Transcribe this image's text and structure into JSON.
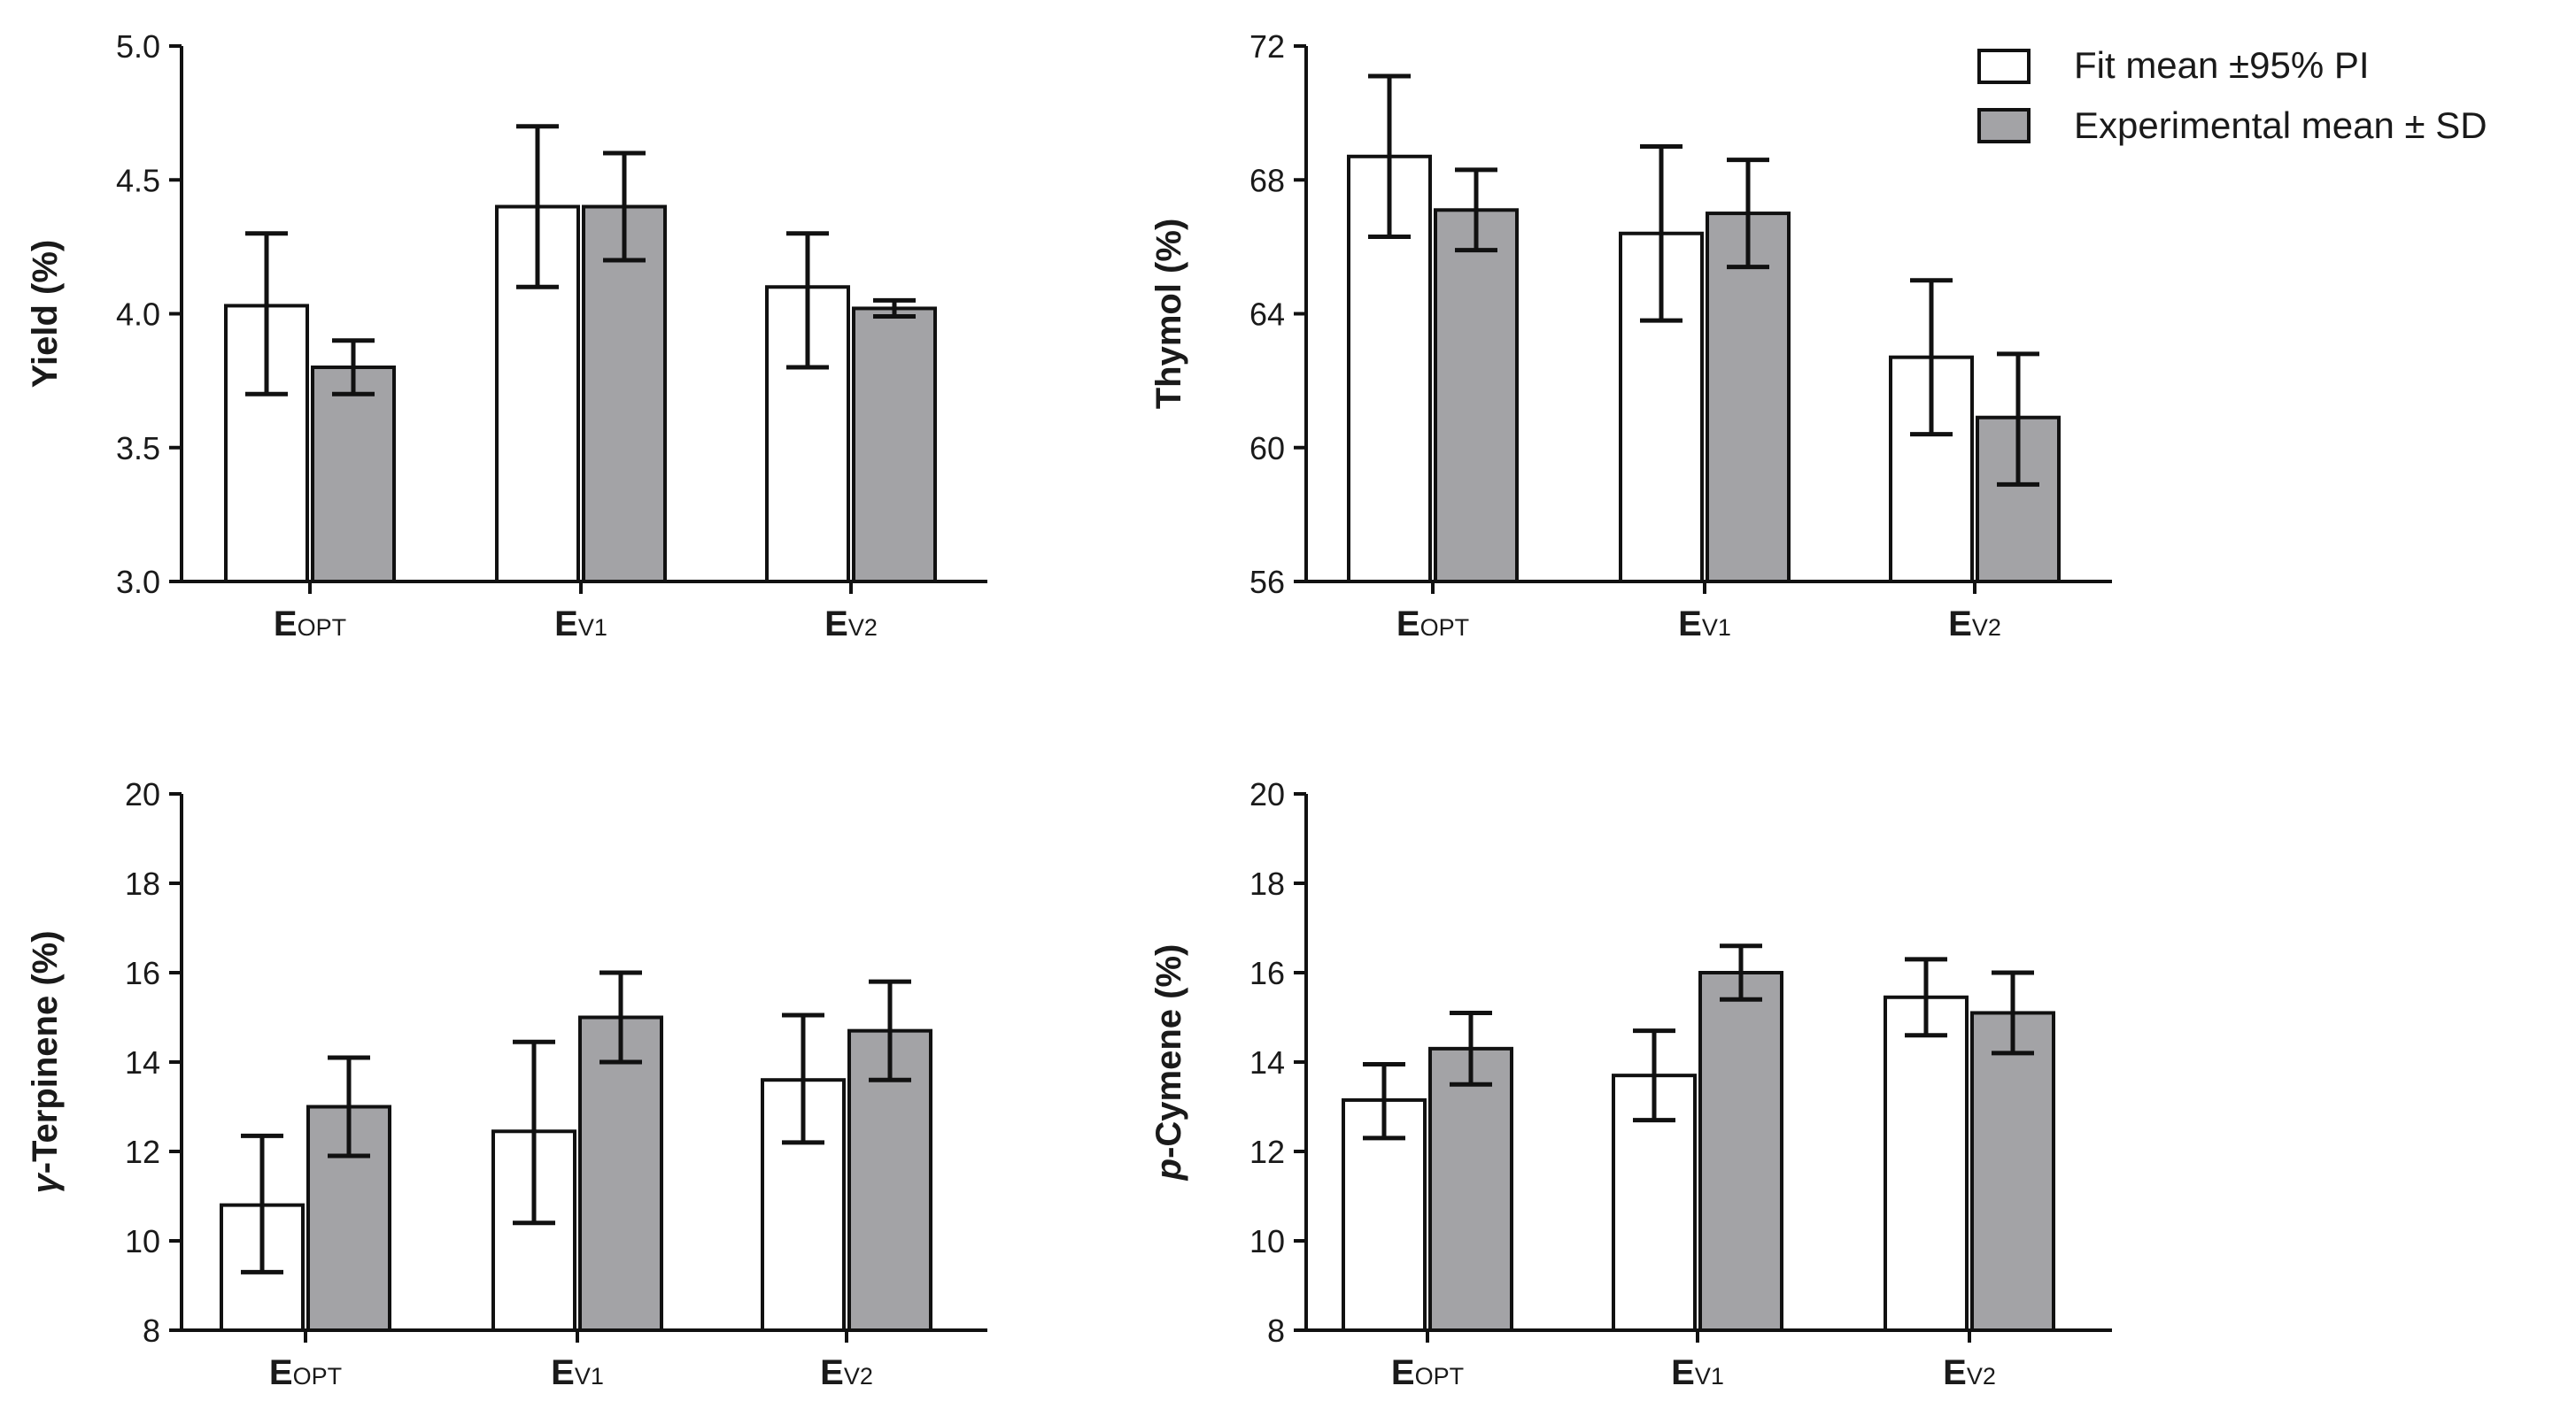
{
  "legend": {
    "fit_label": "Fit mean ±95% PI",
    "exp_label": "Experimental mean ± SD",
    "fit_color": "#ffffff",
    "exp_color": "#a3a3a6"
  },
  "chart_data": [
    {
      "type": "bar",
      "panel": "top-left",
      "ylabel": "Yield (%)",
      "ylabel_parts": [
        {
          "text": "Yield (%)",
          "italic": false
        }
      ],
      "ylim": [
        3.0,
        5.0
      ],
      "yticks": [
        3.0,
        3.5,
        4.0,
        4.5,
        5.0
      ],
      "ytick_labels": [
        "3.0",
        "3.5",
        "4.0",
        "4.5",
        "5.0"
      ],
      "categories": [
        {
          "main": "E",
          "sub": "OPT"
        },
        {
          "main": "E",
          "sub": "V1"
        },
        {
          "main": "E",
          "sub": "V2"
        }
      ],
      "series": [
        {
          "name": "Fit mean ±95% PI",
          "values": [
            4.03,
            4.4,
            4.1
          ],
          "err_low": [
            3.7,
            4.1,
            3.8
          ],
          "err_high": [
            4.3,
            4.7,
            4.3
          ]
        },
        {
          "name": "Experimental mean ± SD",
          "values": [
            3.8,
            4.4,
            4.02
          ],
          "err_low": [
            3.7,
            4.2,
            3.99
          ],
          "err_high": [
            3.9,
            4.6,
            4.05
          ]
        }
      ]
    },
    {
      "type": "bar",
      "panel": "top-right",
      "ylabel": "Thymol (%)",
      "ylabel_parts": [
        {
          "text": "Thymol (%)",
          "italic": false
        }
      ],
      "ylim": [
        56,
        72
      ],
      "yticks": [
        56,
        60,
        64,
        68,
        72
      ],
      "ytick_labels": [
        "56",
        "60",
        "64",
        "68",
        "72"
      ],
      "categories": [
        {
          "main": "E",
          "sub": "OPT"
        },
        {
          "main": "E",
          "sub": "V1"
        },
        {
          "main": "E",
          "sub": "V2"
        }
      ],
      "series": [
        {
          "name": "Fit mean ±95% PI",
          "values": [
            68.7,
            66.4,
            62.7
          ],
          "err_low": [
            66.3,
            63.8,
            60.4
          ],
          "err_high": [
            71.1,
            69.0,
            65.0
          ]
        },
        {
          "name": "Experimental mean ± SD",
          "values": [
            67.1,
            67.0,
            60.9
          ],
          "err_low": [
            65.9,
            65.4,
            58.9
          ],
          "err_high": [
            68.3,
            68.6,
            62.8
          ]
        }
      ]
    },
    {
      "type": "bar",
      "panel": "bottom-left",
      "ylabel": "γ-Terpinene (%)",
      "ylabel_parts": [
        {
          "text": "γ",
          "italic": true
        },
        {
          "text": "-Terpinene (%)",
          "italic": false
        }
      ],
      "ylim": [
        8,
        20
      ],
      "yticks": [
        8,
        10,
        12,
        14,
        16,
        18,
        20
      ],
      "ytick_labels": [
        "8",
        "10",
        "12",
        "14",
        "16",
        "18",
        "20"
      ],
      "categories": [
        {
          "main": "E",
          "sub": "OPT"
        },
        {
          "main": "E",
          "sub": "V1"
        },
        {
          "main": "E",
          "sub": "V2"
        }
      ],
      "series": [
        {
          "name": "Fit mean ±95% PI",
          "values": [
            10.8,
            12.45,
            13.6
          ],
          "err_low": [
            9.3,
            10.4,
            12.2
          ],
          "err_high": [
            12.35,
            14.45,
            15.05
          ]
        },
        {
          "name": "Experimental mean ± SD",
          "values": [
            13.0,
            15.0,
            14.7
          ],
          "err_low": [
            11.9,
            14.0,
            13.6
          ],
          "err_high": [
            14.1,
            16.0,
            15.8
          ]
        }
      ]
    },
    {
      "type": "bar",
      "panel": "bottom-right",
      "ylabel": "p-Cymene (%)",
      "ylabel_parts": [
        {
          "text": "p",
          "italic": true
        },
        {
          "text": "-Cymene (%)",
          "italic": false
        }
      ],
      "ylim": [
        8,
        20
      ],
      "yticks": [
        8,
        10,
        12,
        14,
        16,
        18,
        20
      ],
      "ytick_labels": [
        "8",
        "10",
        "12",
        "14",
        "16",
        "18",
        "20"
      ],
      "categories": [
        {
          "main": "E",
          "sub": "OPT"
        },
        {
          "main": "E",
          "sub": "V1"
        },
        {
          "main": "E",
          "sub": "V2"
        }
      ],
      "series": [
        {
          "name": "Fit mean ±95% PI",
          "values": [
            13.15,
            13.7,
            15.45
          ],
          "err_low": [
            12.3,
            12.7,
            14.6
          ],
          "err_high": [
            13.95,
            14.7,
            16.3
          ]
        },
        {
          "name": "Experimental mean ± SD",
          "values": [
            14.3,
            16.0,
            15.1
          ],
          "err_low": [
            13.5,
            15.4,
            14.2
          ],
          "err_high": [
            15.1,
            16.6,
            16.0
          ]
        }
      ]
    }
  ]
}
